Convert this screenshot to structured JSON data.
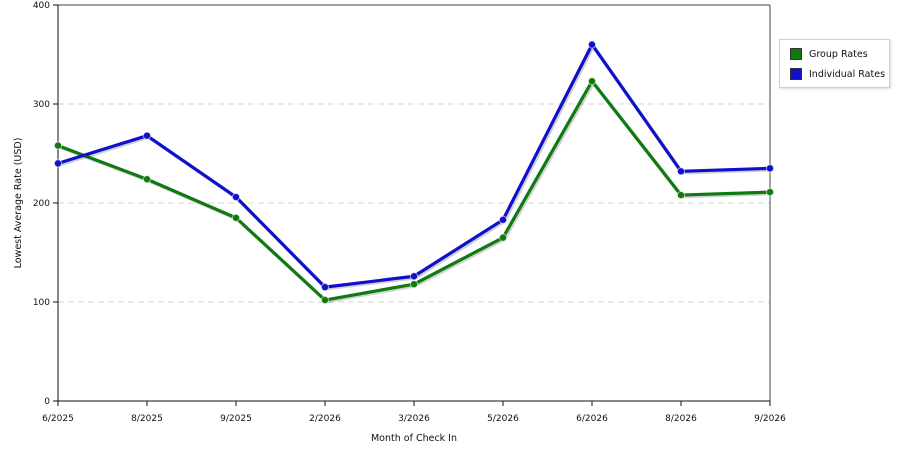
{
  "chart_data": {
    "type": "line",
    "xlabel": "Month of Check In",
    "ylabel": "Lowest Average Rate (USD)",
    "categories": [
      "6/2025",
      "8/2025",
      "9/2025",
      "2/2026",
      "3/2026",
      "5/2026",
      "6/2026",
      "8/2026",
      "9/2026"
    ],
    "ylim": [
      0,
      400
    ],
    "yticks": [
      0,
      100,
      200,
      300,
      400
    ],
    "grid": true,
    "legend_position": "right",
    "series": [
      {
        "name": "Group Rates",
        "color": "#0f7a0f",
        "values": [
          258,
          224,
          185,
          102,
          118,
          165,
          323,
          208,
          211
        ]
      },
      {
        "name": "Individual Rates",
        "color": "#1010cc",
        "values": [
          240,
          268,
          206,
          115,
          126,
          183,
          360,
          232,
          235
        ]
      }
    ]
  }
}
